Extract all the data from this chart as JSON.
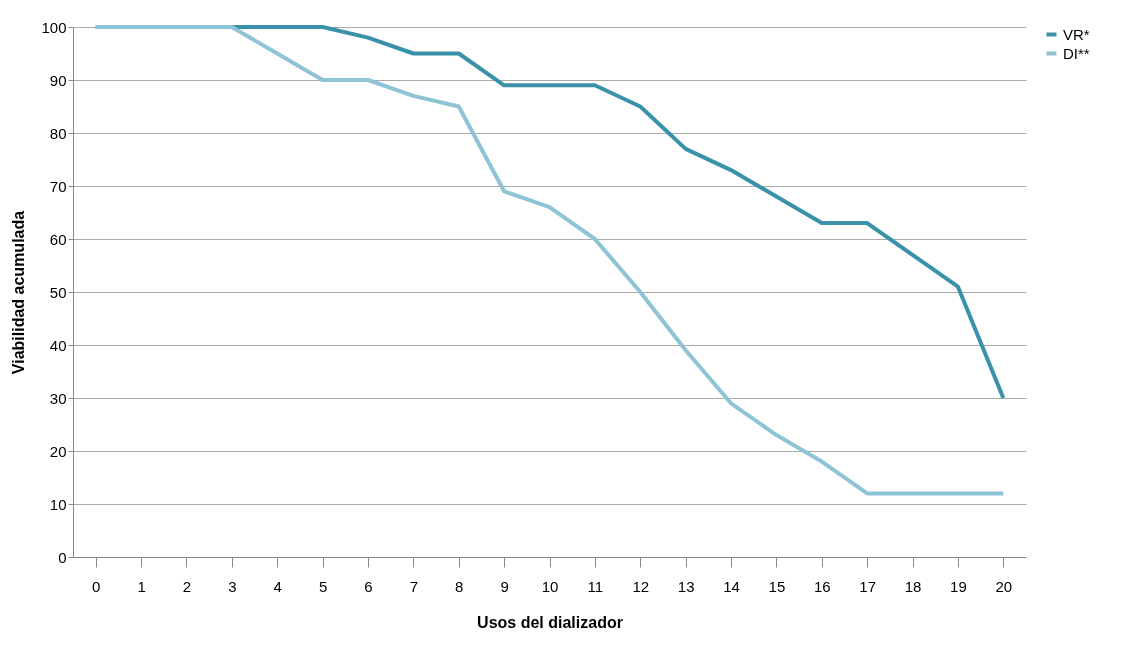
{
  "chart_data": {
    "type": "line",
    "xlabel": "Usos del dializador",
    "ylabel": "Viabilidad acumulada",
    "x": [
      0,
      1,
      2,
      3,
      4,
      5,
      6,
      7,
      8,
      9,
      10,
      11,
      12,
      13,
      14,
      15,
      16,
      17,
      18,
      19,
      20
    ],
    "series": [
      {
        "name": "VR*",
        "color": "#3a92aa",
        "values": [
          100,
          100,
          100,
          100,
          100,
          100,
          98,
          95,
          95,
          89,
          89,
          89,
          85,
          77,
          73,
          68,
          63,
          63,
          57,
          51,
          30
        ]
      },
      {
        "name": "DI**",
        "color": "#8fc3d6",
        "values": [
          100,
          100,
          100,
          100,
          95,
          90,
          90,
          87,
          85,
          69,
          66,
          60,
          50,
          39,
          29,
          23,
          18,
          12,
          12,
          12,
          12
        ]
      }
    ],
    "xlim": [
      -0.5,
      20.5
    ],
    "xticks": [
      0,
      1,
      2,
      3,
      4,
      5,
      6,
      7,
      8,
      9,
      10,
      11,
      12,
      13,
      14,
      15,
      16,
      17,
      18,
      19,
      20
    ],
    "ylim": [
      0,
      100
    ],
    "yticks": [
      0,
      10,
      20,
      30,
      40,
      50,
      60,
      70,
      80,
      90,
      100
    ],
    "grid": "y",
    "legend": "right",
    "marker": "none",
    "line_style": "solid"
  }
}
